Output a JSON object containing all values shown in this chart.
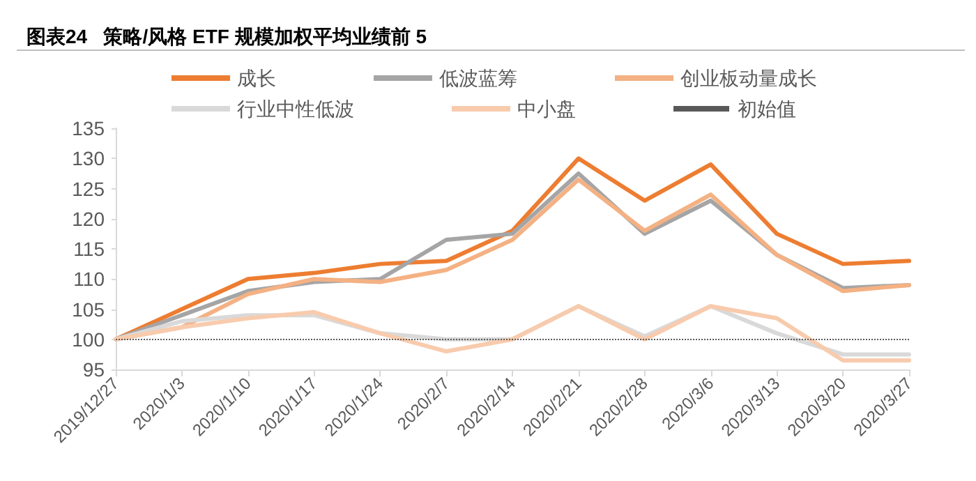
{
  "chart_data": {
    "type": "line",
    "title": "图表24   策略/风格 ETF 规模加权平均业绩前 5",
    "categories": [
      "2019/12/27",
      "2020/1/3",
      "2020/1/10",
      "2020/1/17",
      "2020/1/24",
      "2020/2/7",
      "2020/2/14",
      "2020/2/21",
      "2020/2/28",
      "2020/3/6",
      "2020/3/13",
      "2020/3/20",
      "2020/3/27"
    ],
    "series": [
      {
        "name": "成长",
        "color": "#ed7d31",
        "values": [
          100,
          105,
          110,
          111,
          112.5,
          113,
          118,
          130,
          123,
          129,
          117.5,
          112.5,
          113
        ]
      },
      {
        "name": "低波蓝筹",
        "color": "#a5a5a5",
        "values": [
          100,
          104,
          108,
          109.5,
          110,
          116.5,
          117.5,
          127.5,
          117.5,
          123,
          114,
          108.5,
          109
        ]
      },
      {
        "name": "创业板动量成长",
        "color": "#f4b183",
        "values": [
          100,
          102,
          107.5,
          110,
          109.5,
          111.5,
          116.5,
          126.5,
          118,
          124,
          114,
          108,
          109
        ]
      },
      {
        "name": "行业中性低波",
        "color": "#d9d9d9",
        "values": [
          100,
          103,
          104,
          104,
          101,
          100,
          100,
          105.5,
          100.5,
          105.5,
          101,
          97.5,
          97.5
        ]
      },
      {
        "name": "中小盘",
        "color": "#f8cbad",
        "values": [
          100,
          102,
          103.5,
          104.5,
          101,
          98,
          100,
          105.5,
          100,
          105.5,
          103.5,
          96.5,
          96.5
        ]
      }
    ],
    "ref_lines": [
      {
        "axis": "y",
        "value": 100,
        "label": "初始值",
        "color": "#595959",
        "line_style": "dotted"
      }
    ],
    "ylim": [
      95,
      135
    ],
    "yticks": [
      95,
      100,
      105,
      110,
      115,
      120,
      125,
      130,
      135
    ],
    "grid": false,
    "legend": "top",
    "marker": "none",
    "line_style": "solid"
  }
}
